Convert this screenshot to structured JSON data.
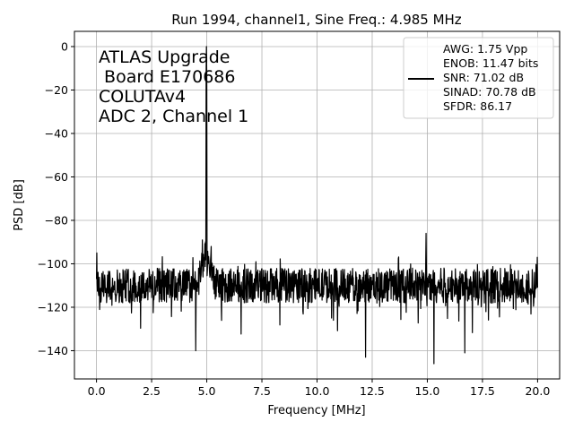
{
  "chart_data": {
    "type": "line",
    "title": "Run 1994, channel1, Sine Freq.: 4.985 MHz",
    "xlabel": "Frequency [MHz]",
    "ylabel": "PSD [dB]",
    "xlim": [
      -1.0,
      21.0
    ],
    "ylim": [
      -153,
      7
    ],
    "xticks": [
      0.0,
      2.5,
      5.0,
      7.5,
      10.0,
      12.5,
      15.0,
      17.5,
      20.0
    ],
    "xtick_labels": [
      "0.0",
      "2.5",
      "5.0",
      "7.5",
      "10.0",
      "12.5",
      "15.0",
      "17.5",
      "20.0"
    ],
    "yticks": [
      0,
      -20,
      -40,
      -60,
      -80,
      -100,
      -120,
      -140
    ],
    "ytick_labels": [
      "0",
      "−20",
      "−40",
      "−60",
      "−80",
      "−100",
      "−120",
      "−140"
    ],
    "grid": true,
    "annotation_lines": [
      "ATLAS Upgrade",
      " Board E170686",
      "COLUTAv4",
      "ADC 2, Channel 1"
    ],
    "annotation_position": "top-left",
    "legend_position": "top-right",
    "legend_lines": [
      "AWG: 1.75 Vpp",
      "ENOB: 11.47 bits",
      "SNR: 71.02 dB",
      "SINAD: 70.78 dB",
      "SFDR: 86.17"
    ],
    "line_color": "#000000",
    "series": [
      {
        "noise_floor_db": -110,
        "fundamental": {
          "x": 4.985,
          "y": 0
        },
        "spurs": [
          {
            "x": 4.8,
            "y": -89
          },
          {
            "x": 5.2,
            "y": -92
          },
          {
            "x": 14.95,
            "y": -86
          },
          {
            "x": 0.02,
            "y": -95
          },
          {
            "x": 19.98,
            "y": -97
          }
        ],
        "deep_dips": [
          {
            "x": 4.5,
            "y": -140
          },
          {
            "x": 12.2,
            "y": -143
          },
          {
            "x": 15.3,
            "y": -146
          },
          {
            "x": 16.7,
            "y": -141
          }
        ]
      }
    ]
  }
}
